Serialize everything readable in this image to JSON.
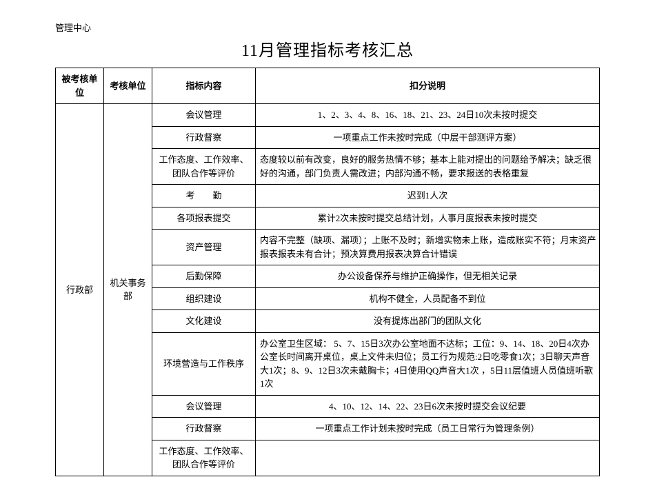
{
  "header_label": "管理中心",
  "title": "11月管理指标考核汇总",
  "columns": {
    "c1": "被考核单位",
    "c2": "考核单位",
    "c3": "指标内容",
    "c4": "扣分说明"
  },
  "col1_label": "行政部",
  "col2_label": "机关事务部",
  "rows": [
    {
      "indicator": "会议管理",
      "desc": "1、2、3、4、8、16、18、21、23、24日10次未按时提交",
      "align": "center"
    },
    {
      "indicator": "行政督察",
      "desc": "一项重点工作未按时完成（中层干部测评方案）",
      "align": "center"
    },
    {
      "indicator": "工作态度、工作效率、团队合作等评价",
      "desc": "态度较以前有改变，良好的服务热情不够；基本上能对提出的问题给予解决；缺乏很好的沟通，部门负责人需改进；内部沟通不畅，要求报送的表格重复",
      "align": "left"
    },
    {
      "indicator": "考　　勤",
      "desc": "迟到1人次",
      "align": "center"
    },
    {
      "indicator": "各项报表提交",
      "desc": "累计2次未按时提交总结计划，人事月度报表未按时提交",
      "align": "center"
    },
    {
      "indicator": "资产管理",
      "desc": "内容不完整（缺项、漏项）；上账不及时；新增实物未上账，造成账实不符；月末资产报表报表未有合计；预决算费用报表决算合计错误",
      "align": "left"
    },
    {
      "indicator": "后勤保障",
      "desc": "办公设备保养与维护正确操作，但无相关记录",
      "align": "center"
    },
    {
      "indicator": "组织建设",
      "desc": "机构不健全，人员配备不到位",
      "align": "center"
    },
    {
      "indicator": "文化建设",
      "desc": "没有提炼出部门的团队文化",
      "align": "center"
    },
    {
      "indicator": "环境营造与工作秩序",
      "desc": "办公室卫生区域： 5、7、15日3次办公室地面不达标；工位：9、14、18、20日4次办公室长时间离开桌位，桌上文件未归位；员工行为规范:2日吃零食1次；3日聊天声音大1次；8、9、12日3次未戴胸卡；4日使用QQ声音大1次 ，5日11层值班人员值班听歌1次",
      "align": "left"
    },
    {
      "indicator": "会议管理",
      "desc": "4、10、12、14、22、23日6次未按时提交会议纪要",
      "align": "center"
    },
    {
      "indicator": "行政督察",
      "desc": "一项重点工作计划未按时完成（员工日常行为管理条例）",
      "align": "center"
    },
    {
      "indicator": "工作态度、工作效率、团队合作等评价",
      "desc": "",
      "align": "center"
    }
  ]
}
